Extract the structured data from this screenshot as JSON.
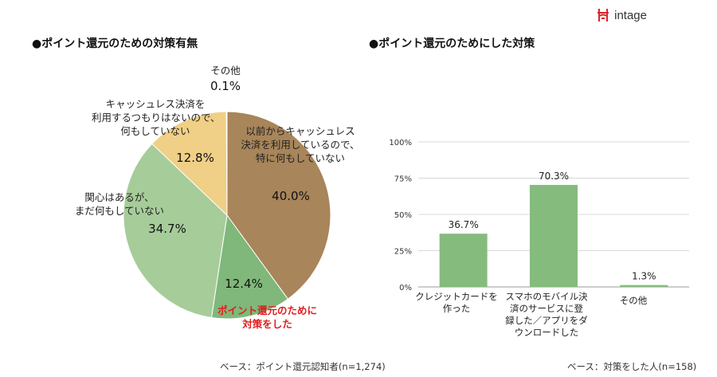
{
  "brand": {
    "name": "intage"
  },
  "left_title": "●ポイント還元のための対策有無",
  "right_title": "●ポイント還元のためにした対策",
  "left_note": "ベース：ポイント還元認知者(n=1,274)",
  "right_note": "ベース：対策をした人(n=158)",
  "chart_data": [
    {
      "type": "pie",
      "title": "●ポイント還元のための対策有無",
      "slices": [
        {
          "label_lines": [
            "以前からキャッシュレス",
            "決済を利用しているので、",
            "特に何もしていない"
          ],
          "value": 40.0,
          "value_label": "40.0%",
          "color": "#a8855a"
        },
        {
          "label_lines": [
            "ポイント還元のために",
            "対策をした"
          ],
          "value": 12.4,
          "value_label": "12.4%",
          "color": "#7fb87a"
        },
        {
          "label_lines": [
            "関心はあるが、",
            "まだ何もしていない"
          ],
          "value": 34.7,
          "value_label": "34.7%",
          "color": "#a6cc9a"
        },
        {
          "label_lines": [
            "キャッシュレス決済を",
            "利用するつもりはないので、",
            "何もしていない"
          ],
          "value": 12.8,
          "value_label": "12.8%",
          "color": "#f0cf86"
        },
        {
          "label_lines": [
            "その他"
          ],
          "value": 0.1,
          "value_label": "0.1%",
          "color": "#d9d9d9"
        }
      ]
    },
    {
      "type": "bar",
      "title": "●ポイント還元のためにした対策",
      "categories": [
        [
          "クレジットカードを",
          "作った"
        ],
        [
          "スマホのモバイル決",
          "済のサービスに登",
          "録した／アプリをダ",
          "ウンロードした"
        ],
        [
          "その他"
        ]
      ],
      "values": [
        36.7,
        70.3,
        1.3
      ],
      "value_labels": [
        "36.7%",
        "70.3%",
        "1.3%"
      ],
      "yticks": [
        "0%",
        "25%",
        "50%",
        "75%",
        "100%"
      ],
      "ylim": [
        0,
        100
      ],
      "color": "#85bb7d",
      "grid": true
    }
  ]
}
